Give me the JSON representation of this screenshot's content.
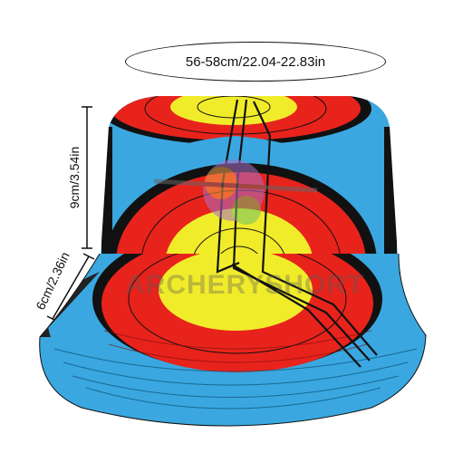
{
  "dimensions": {
    "circumference": "56-58cm/22.04-22.83in",
    "height": "9cm/3.54in",
    "brim": "6cm/2.36in"
  },
  "watermark": "ARCHERYSHORT",
  "colors": {
    "blue": "#3aa7e0",
    "red": "#e8231c",
    "yellow": "#f1ec2a",
    "black": "#111111",
    "white": "#ffffff"
  },
  "icons": [
    "bucket-hat-image",
    "dimension-line-icon"
  ]
}
